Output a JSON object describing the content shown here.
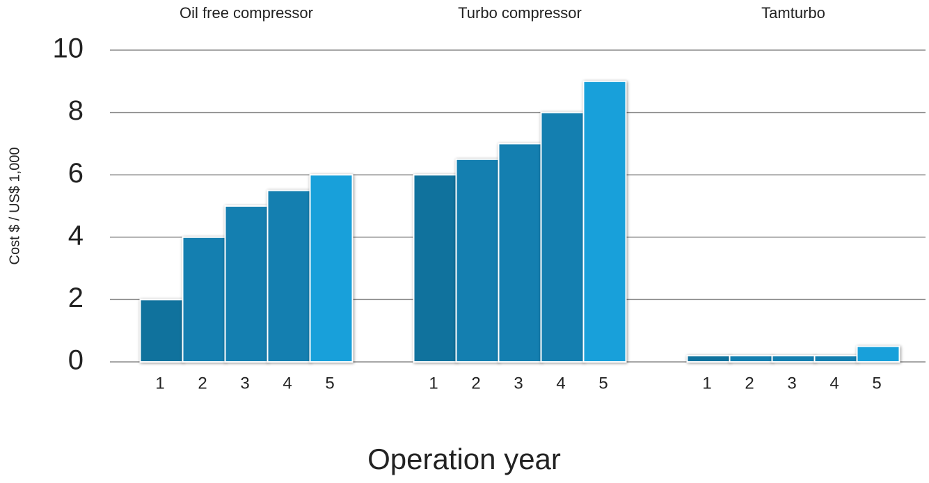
{
  "chart_data": {
    "type": "bar",
    "y_label": "Cost $ / US$ 1,000",
    "x_label": "Operation year",
    "categories": [
      "1",
      "2",
      "3",
      "4",
      "5"
    ],
    "colors": [
      "#10729d",
      "#147fb0",
      "#147fb0",
      "#147fb0",
      "#18a0da"
    ],
    "series": [
      {
        "name": "Oil free compressor",
        "values": [
          2,
          4,
          5,
          5.5,
          6
        ]
      },
      {
        "name": "Turbo compressor",
        "values": [
          6,
          6.5,
          7,
          8,
          9
        ]
      },
      {
        "name": "Tamturbo",
        "values": [
          0.2,
          0.2,
          0.2,
          0.2,
          0.5
        ]
      }
    ],
    "ylim": [
      0,
      10
    ],
    "yticks": [
      0,
      2,
      4,
      6,
      8,
      10
    ],
    "grid": true
  }
}
